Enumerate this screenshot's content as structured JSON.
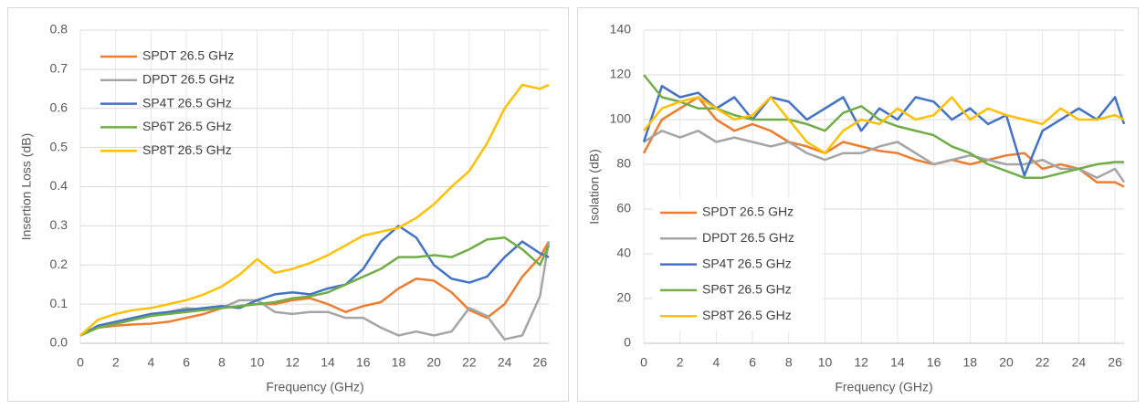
{
  "chart_data": [
    {
      "type": "line",
      "ylabel": "Insertion Loss (dB)",
      "xlabel": "Frequency (GHz)",
      "x": [
        0,
        1,
        2,
        3,
        4,
        5,
        6,
        7,
        8,
        9,
        10,
        11,
        12,
        13,
        14,
        15,
        16,
        17,
        18,
        19,
        20,
        21,
        22,
        23,
        24,
        25,
        26,
        26.5
      ],
      "xlim": [
        0,
        26.5
      ],
      "xticks": [
        0,
        2,
        4,
        6,
        8,
        10,
        12,
        14,
        16,
        18,
        20,
        22,
        24,
        26
      ],
      "ylim": [
        0,
        0.8
      ],
      "yticks": [
        {
          "value": 0,
          "label": "0.0"
        },
        0.1,
        0.2,
        0.3,
        0.4,
        0.5,
        0.6,
        0.7,
        0.8
      ],
      "grid": true,
      "legend": "upper left",
      "series": [
        {
          "name": "SPDT 26.5 GHz",
          "color": "#ed7d31",
          "values": [
            0.02,
            0.04,
            0.045,
            0.048,
            0.05,
            0.055,
            0.065,
            0.075,
            0.09,
            0.095,
            0.1,
            0.1,
            0.11,
            0.115,
            0.1,
            0.08,
            0.095,
            0.105,
            0.14,
            0.165,
            0.16,
            0.13,
            0.085,
            0.065,
            0.1,
            0.17,
            0.22,
            0.26
          ]
        },
        {
          "name": "DPDT 26.5 GHz",
          "color": "#a5a5a5",
          "values": [
            0.02,
            0.04,
            0.05,
            0.06,
            0.07,
            0.08,
            0.09,
            0.085,
            0.09,
            0.11,
            0.11,
            0.08,
            0.075,
            0.08,
            0.08,
            0.065,
            0.065,
            0.04,
            0.02,
            0.03,
            0.02,
            0.03,
            0.09,
            0.07,
            0.01,
            0.02,
            0.12,
            0.26
          ]
        },
        {
          "name": "SP4T 26.5 GHz",
          "color": "#4472c4",
          "values": [
            0.02,
            0.045,
            0.055,
            0.065,
            0.075,
            0.08,
            0.085,
            0.09,
            0.095,
            0.09,
            0.11,
            0.125,
            0.13,
            0.125,
            0.14,
            0.15,
            0.19,
            0.26,
            0.3,
            0.27,
            0.2,
            0.165,
            0.155,
            0.17,
            0.22,
            0.26,
            0.23,
            0.22
          ]
        },
        {
          "name": "SP6T 26.5 GHz",
          "color": "#70ad47",
          "values": [
            0.02,
            0.04,
            0.05,
            0.06,
            0.07,
            0.075,
            0.08,
            0.085,
            0.09,
            0.095,
            0.1,
            0.105,
            0.115,
            0.12,
            0.13,
            0.15,
            0.17,
            0.19,
            0.22,
            0.22,
            0.225,
            0.22,
            0.24,
            0.265,
            0.27,
            0.24,
            0.2,
            0.25
          ]
        },
        {
          "name": "SP8T 26.5 GHz",
          "color": "#ffc000",
          "values": [
            0.02,
            0.06,
            0.075,
            0.085,
            0.09,
            0.1,
            0.11,
            0.125,
            0.145,
            0.175,
            0.215,
            0.18,
            0.19,
            0.205,
            0.225,
            0.25,
            0.275,
            0.285,
            0.295,
            0.32,
            0.355,
            0.4,
            0.44,
            0.51,
            0.6,
            0.66,
            0.65,
            0.66
          ]
        }
      ]
    },
    {
      "type": "line",
      "ylabel": "Isolation (dB)",
      "xlabel": "Frequency (GHz)",
      "x": [
        0,
        1,
        2,
        3,
        4,
        5,
        6,
        7,
        8,
        9,
        10,
        11,
        12,
        13,
        14,
        15,
        16,
        17,
        18,
        19,
        20,
        21,
        22,
        23,
        24,
        25,
        26,
        26.5
      ],
      "xlim": [
        0,
        26.5
      ],
      "xticks": [
        0,
        2,
        4,
        6,
        8,
        10,
        12,
        14,
        16,
        18,
        20,
        22,
        24,
        26
      ],
      "ylim": [
        0,
        140
      ],
      "yticks": [
        0,
        20,
        40,
        60,
        80,
        100,
        120,
        140
      ],
      "grid": true,
      "legend": "lower left",
      "series": [
        {
          "name": "SPDT 26.5 GHz",
          "color": "#ed7d31",
          "values": [
            85,
            100,
            105,
            110,
            100,
            95,
            98,
            95,
            90,
            88,
            85,
            90,
            88,
            86,
            85,
            82,
            80,
            82,
            80,
            82,
            84,
            85,
            78,
            80,
            78,
            72,
            72,
            70
          ]
        },
        {
          "name": "DPDT 26.5 GHz",
          "color": "#a5a5a5",
          "values": [
            90,
            95,
            92,
            95,
            90,
            92,
            90,
            88,
            90,
            85,
            82,
            85,
            85,
            88,
            90,
            85,
            80,
            82,
            84,
            82,
            80,
            80,
            82,
            78,
            78,
            74,
            78,
            72
          ]
        },
        {
          "name": "SP4T 26.5 GHz",
          "color": "#4472c4",
          "values": [
            90,
            115,
            110,
            112,
            105,
            110,
            100,
            110,
            108,
            100,
            105,
            110,
            95,
            105,
            100,
            110,
            108,
            100,
            105,
            98,
            102,
            75,
            95,
            100,
            105,
            100,
            110,
            98
          ]
        },
        {
          "name": "SP6T 26.5 GHz",
          "color": "#70ad47",
          "values": [
            120,
            110,
            108,
            105,
            105,
            102,
            100,
            100,
            100,
            98,
            95,
            103,
            106,
            100,
            97,
            95,
            93,
            88,
            85,
            80,
            77,
            74,
            74,
            76,
            78,
            80,
            81,
            81
          ]
        },
        {
          "name": "SP8T 26.5 GHz",
          "color": "#ffc000",
          "values": [
            95,
            105,
            108,
            110,
            105,
            100,
            102,
            110,
            100,
            90,
            85,
            95,
            100,
            98,
            105,
            100,
            102,
            110,
            100,
            105,
            102,
            100,
            98,
            105,
            100,
            100,
            102,
            100
          ]
        }
      ]
    }
  ]
}
